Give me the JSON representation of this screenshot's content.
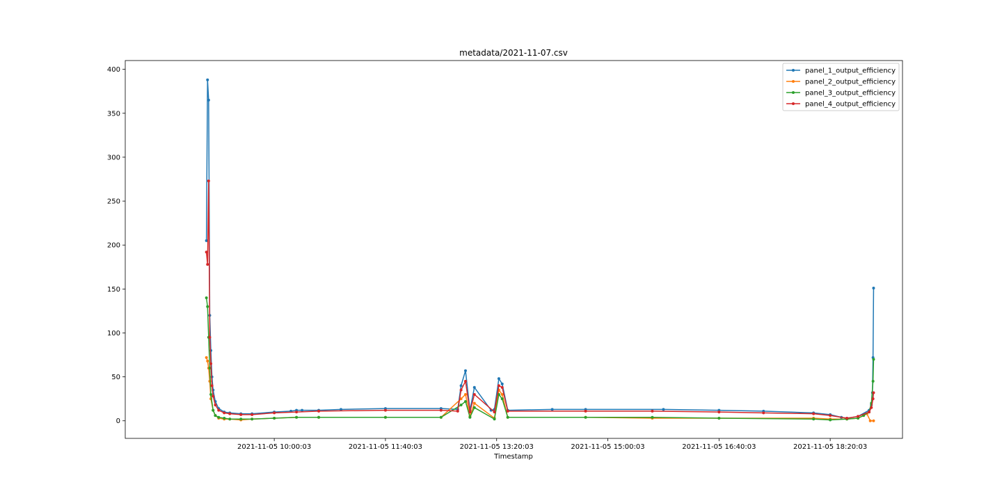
{
  "chart_data": {
    "type": "line",
    "title": "metadata/2021-11-07.csv",
    "xlabel": "Timestamp",
    "ylabel": "",
    "x_unit": "minutes",
    "xlim": [
      -74,
      625
    ],
    "ylim": [
      -20,
      410
    ],
    "x_ticks": [
      {
        "value": 60,
        "label": "2021-11-05 10:00:03"
      },
      {
        "value": 160,
        "label": "2021-11-05 11:40:03"
      },
      {
        "value": 260,
        "label": "2021-11-05 13:20:03"
      },
      {
        "value": 360,
        "label": "2021-11-05 15:00:03"
      },
      {
        "value": 460,
        "label": "2021-11-05 16:40:03"
      },
      {
        "value": 560,
        "label": "2021-11-05 18:20:03"
      }
    ],
    "y_ticks": [
      0,
      50,
      100,
      150,
      200,
      250,
      300,
      350,
      400
    ],
    "grid": false,
    "legend": "top-right",
    "series": [
      {
        "name": "panel_1_output_efficiency",
        "color": "#1f77b4",
        "x": [
          -1,
          0,
          1,
          2,
          3,
          4,
          5,
          7,
          10,
          15,
          20,
          30,
          40,
          60,
          75,
          80,
          85,
          100,
          120,
          160,
          210,
          225,
          228,
          232,
          236,
          240,
          255,
          258,
          262,
          265,
          270,
          310,
          340,
          410,
          460,
          500,
          545,
          560,
          570,
          575,
          585,
          595,
          597,
          598,
          598.5,
          599
        ],
        "values": [
          205,
          388,
          365,
          120,
          80,
          50,
          35,
          22,
          14,
          10,
          9,
          8,
          8,
          10,
          11,
          12,
          12,
          12,
          13,
          14,
          14,
          13,
          40,
          57,
          12,
          38,
          12,
          13,
          48,
          42,
          12,
          13,
          13,
          13,
          12,
          11,
          9,
          7,
          4,
          3,
          5,
          12,
          18,
          32,
          72,
          151
        ]
      },
      {
        "name": "panel_2_output_efficiency",
        "color": "#ff7f0e",
        "x": [
          -1,
          0,
          1,
          2,
          3,
          5,
          7,
          10,
          15,
          20,
          30,
          40,
          60,
          80,
          100,
          160,
          210,
          228,
          232,
          236,
          240,
          258,
          262,
          265,
          270,
          340,
          400,
          460,
          545,
          560,
          575,
          585,
          590,
          593,
          596,
          599
        ],
        "values": [
          72,
          68,
          60,
          45,
          25,
          12,
          6,
          3,
          2,
          2,
          1,
          2,
          3,
          4,
          4,
          4,
          4,
          25,
          30,
          5,
          20,
          3,
          35,
          30,
          4,
          4,
          3,
          3,
          3,
          2,
          2,
          3,
          6,
          8,
          0,
          0
        ]
      },
      {
        "name": "panel_3_output_efficiency",
        "color": "#2ca02c",
        "x": [
          -1,
          0,
          1,
          2,
          3,
          5,
          7,
          10,
          15,
          20,
          30,
          40,
          60,
          80,
          100,
          160,
          210,
          228,
          232,
          236,
          240,
          258,
          262,
          265,
          270,
          340,
          400,
          460,
          545,
          560,
          575,
          585,
          590,
          595,
          597,
          598.5,
          599
        ],
        "values": [
          140,
          130,
          95,
          60,
          30,
          12,
          6,
          4,
          3,
          2,
          2,
          2,
          3,
          4,
          4,
          4,
          4,
          18,
          22,
          4,
          15,
          2,
          30,
          25,
          4,
          4,
          4,
          3,
          2,
          1,
          2,
          3,
          6,
          10,
          20,
          45,
          70
        ]
      },
      {
        "name": "panel_4_output_efficiency",
        "color": "#d62728",
        "x": [
          -1,
          0,
          1,
          2,
          3,
          4,
          5,
          7,
          10,
          15,
          20,
          30,
          40,
          60,
          80,
          100,
          160,
          210,
          225,
          228,
          232,
          236,
          240,
          258,
          262,
          265,
          270,
          340,
          400,
          460,
          500,
          545,
          560,
          575,
          585,
          595,
          597,
          598.5,
          599
        ],
        "values": [
          192,
          178,
          273,
          95,
          65,
          40,
          28,
          18,
          12,
          9,
          8,
          7,
          7,
          9,
          10,
          11,
          12,
          12,
          11,
          35,
          45,
          10,
          30,
          10,
          40,
          38,
          11,
          11,
          11,
          10,
          9,
          8,
          6,
          3,
          5,
          10,
          15,
          25,
          32
        ]
      }
    ]
  }
}
